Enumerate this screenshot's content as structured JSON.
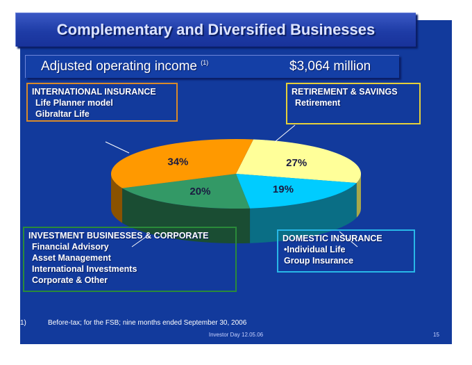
{
  "title": "Complementary and Diversified Businesses",
  "subtitle": {
    "label": "Adjusted operating income",
    "footnote_ref": "(1)",
    "value": "$3,064 million"
  },
  "boxes": {
    "international": {
      "heading": "INTERNATIONAL INSURANCE",
      "items": [
        "Life Planner model",
        "Gibraltar Life"
      ],
      "color": "#d98a2a"
    },
    "retirement": {
      "heading": "RETIREMENT & SAVINGS",
      "items": [
        "Retirement"
      ],
      "color": "#e6d03a"
    },
    "investment": {
      "heading": "INVESTMENT BUSINESSES & CORPORATE",
      "items": [
        "Financial Advisory",
        "Asset Management",
        "International Investments",
        "Corporate & Other"
      ],
      "color": "#2a8a3a"
    },
    "domestic": {
      "heading": "DOMESTIC INSURANCE",
      "items": [
        "•Individual Life",
        "Group Insurance"
      ],
      "color": "#28b8e8"
    }
  },
  "chart_data": {
    "type": "pie",
    "style": "3d",
    "slices": [
      {
        "label": "27%",
        "value": 27,
        "segment": "Retirement & Savings",
        "color": "#ffff99",
        "side": "#a8a84a"
      },
      {
        "label": "19%",
        "value": 19,
        "segment": "Domestic Insurance",
        "color": "#00ccff",
        "side": "#0a6e85"
      },
      {
        "label": "20%",
        "value": 20,
        "segment": "Investment Businesses & Corporate",
        "color": "#339966",
        "side": "#1a4d33"
      },
      {
        "label": "34%",
        "value": 34,
        "segment": "International Insurance",
        "color": "#ff9900",
        "side": "#8a5200"
      }
    ]
  },
  "footnote": {
    "number": "1)",
    "text": "Before-tax; for the FSB; nine months ended September 30, 2006"
  },
  "footer": {
    "center": "Investor Day 12.05.06",
    "page": "15"
  }
}
